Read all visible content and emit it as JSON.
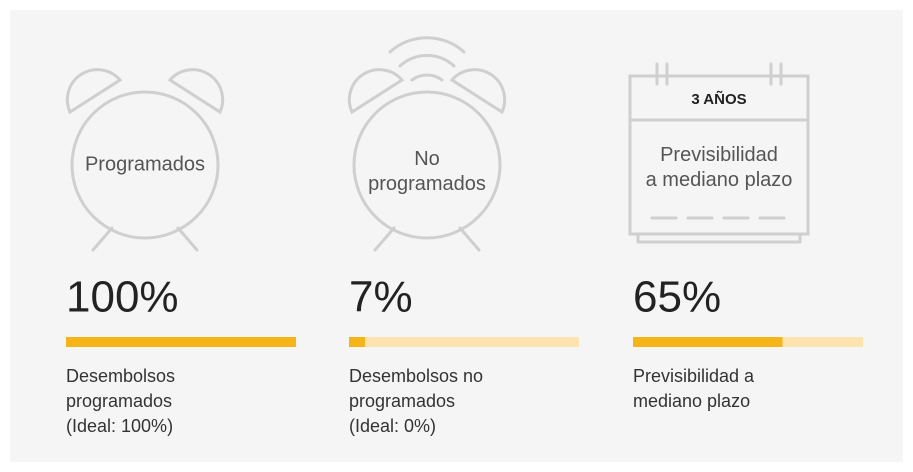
{
  "xlim": [
    0,
    100
  ],
  "cards": [
    {
      "icon_label": [
        "Programados"
      ],
      "value": 100,
      "value_label": "100%",
      "description": [
        "Desembolsos",
        "programados",
        "(Ideal: 100%)"
      ]
    },
    {
      "icon_label": [
        "No",
        "programados"
      ],
      "value": 7,
      "value_label": "7%",
      "description": [
        "Desembolsos no",
        "programados",
        "(Ideal: 0%)"
      ]
    },
    {
      "icon_header": "3 AÑOS",
      "icon_label": [
        "Previsibilidad",
        "a mediano plazo"
      ],
      "value": 65,
      "value_label": "65%",
      "description": [
        "Previsibilidad a",
        "mediano plazo"
      ]
    }
  ]
}
